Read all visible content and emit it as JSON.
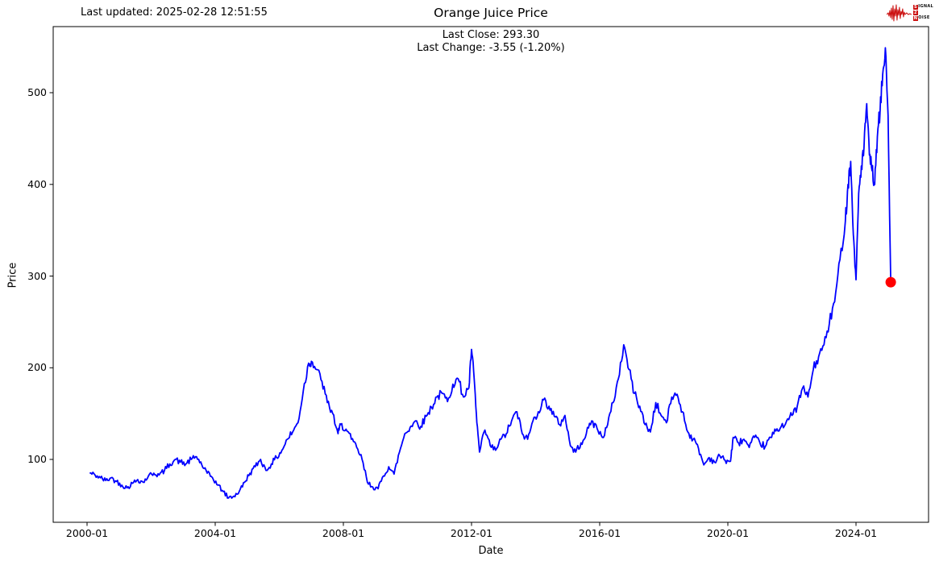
{
  "header": {
    "last_updated": "Last updated: 2025-02-28 12:51:55",
    "logo": {
      "color": "#cc1111",
      "line1_box": "S",
      "line1_rest": "IGNAL",
      "line2_box": "2",
      "line2_rest": "",
      "line3_box": "N",
      "line3_rest": "OISE"
    }
  },
  "chart_data": {
    "type": "line",
    "title": "Orange Juice Price",
    "annotations": [
      "Last Close: 293.30",
      "Last Change: -3.55 (-1.20%)"
    ],
    "xlabel": "Date",
    "ylabel": "Price",
    "x_ticks": [
      "2000-01",
      "2004-01",
      "2008-01",
      "2012-01",
      "2016-01",
      "2020-01",
      "2024-01"
    ],
    "y_ticks": [
      100,
      200,
      300,
      400,
      500
    ],
    "ylim": [
      32,
      573
    ],
    "grid": false,
    "legend": "none",
    "line_color": "#0000ff",
    "last_point_color": "#ff0000",
    "last_close": 293.3,
    "last_change": -3.55,
    "last_change_pct": "-1.20%",
    "series": [
      {
        "name": "Orange Juice Price",
        "points": [
          [
            "2000-02",
            85
          ],
          [
            "2000-04",
            83
          ],
          [
            "2000-06",
            80
          ],
          [
            "2000-08",
            77
          ],
          [
            "2000-10",
            80
          ],
          [
            "2000-12",
            76
          ],
          [
            "2001-02",
            72
          ],
          [
            "2001-04",
            69
          ],
          [
            "2001-06",
            74
          ],
          [
            "2001-08",
            78
          ],
          [
            "2001-10",
            75
          ],
          [
            "2001-12",
            82
          ],
          [
            "2002-02",
            85
          ],
          [
            "2002-04",
            83
          ],
          [
            "2002-06",
            88
          ],
          [
            "2002-08",
            95
          ],
          [
            "2002-10",
            100
          ],
          [
            "2002-12",
            97
          ],
          [
            "2003-02",
            95
          ],
          [
            "2003-04",
            100
          ],
          [
            "2003-06",
            103
          ],
          [
            "2003-08",
            94
          ],
          [
            "2003-10",
            85
          ],
          [
            "2003-12",
            80
          ],
          [
            "2004-02",
            72
          ],
          [
            "2004-04",
            65
          ],
          [
            "2004-06",
            58
          ],
          [
            "2004-08",
            60
          ],
          [
            "2004-10",
            65
          ],
          [
            "2004-12",
            75
          ],
          [
            "2005-02",
            85
          ],
          [
            "2005-04",
            92
          ],
          [
            "2005-06",
            100
          ],
          [
            "2005-08",
            88
          ],
          [
            "2005-10",
            95
          ],
          [
            "2005-12",
            102
          ],
          [
            "2006-02",
            110
          ],
          [
            "2006-04",
            122
          ],
          [
            "2006-06",
            130
          ],
          [
            "2006-08",
            140
          ],
          [
            "2006-10",
            175
          ],
          [
            "2006-12",
            205
          ],
          [
            "2007-01",
            207
          ],
          [
            "2007-03",
            198
          ],
          [
            "2007-05",
            185
          ],
          [
            "2007-07",
            162
          ],
          [
            "2007-09",
            150
          ],
          [
            "2007-11",
            128
          ],
          [
            "2007-12",
            138
          ],
          [
            "2008-02",
            133
          ],
          [
            "2008-04",
            122
          ],
          [
            "2008-06",
            113
          ],
          [
            "2008-08",
            100
          ],
          [
            "2008-10",
            75
          ],
          [
            "2008-12",
            70
          ],
          [
            "2009-02",
            68
          ],
          [
            "2009-04",
            82
          ],
          [
            "2009-06",
            92
          ],
          [
            "2009-08",
            84
          ],
          [
            "2009-10",
            108
          ],
          [
            "2009-12",
            128
          ],
          [
            "2010-02",
            135
          ],
          [
            "2010-04",
            142
          ],
          [
            "2010-06",
            136
          ],
          [
            "2010-08",
            147
          ],
          [
            "2010-10",
            157
          ],
          [
            "2010-12",
            168
          ],
          [
            "2011-02",
            172
          ],
          [
            "2011-04",
            163
          ],
          [
            "2011-06",
            182
          ],
          [
            "2011-08",
            188
          ],
          [
            "2011-10",
            168
          ],
          [
            "2011-12",
            178
          ],
          [
            "2012-01",
            220
          ],
          [
            "2012-02",
            188
          ],
          [
            "2012-03",
            140
          ],
          [
            "2012-04",
            108
          ],
          [
            "2012-06",
            132
          ],
          [
            "2012-08",
            115
          ],
          [
            "2012-10",
            110
          ],
          [
            "2012-12",
            122
          ],
          [
            "2013-02",
            128
          ],
          [
            "2013-04",
            142
          ],
          [
            "2013-06",
            152
          ],
          [
            "2013-08",
            128
          ],
          [
            "2013-10",
            122
          ],
          [
            "2013-12",
            142
          ],
          [
            "2014-02",
            152
          ],
          [
            "2014-04",
            165
          ],
          [
            "2014-06",
            158
          ],
          [
            "2014-08",
            147
          ],
          [
            "2014-10",
            138
          ],
          [
            "2014-12",
            148
          ],
          [
            "2015-02",
            115
          ],
          [
            "2015-04",
            108
          ],
          [
            "2015-06",
            118
          ],
          [
            "2015-08",
            128
          ],
          [
            "2015-10",
            142
          ],
          [
            "2015-12",
            134
          ],
          [
            "2016-02",
            124
          ],
          [
            "2016-04",
            138
          ],
          [
            "2016-06",
            162
          ],
          [
            "2016-08",
            188
          ],
          [
            "2016-10",
            225
          ],
          [
            "2016-12",
            198
          ],
          [
            "2017-02",
            172
          ],
          [
            "2017-04",
            158
          ],
          [
            "2017-06",
            138
          ],
          [
            "2017-08",
            130
          ],
          [
            "2017-10",
            162
          ],
          [
            "2017-12",
            148
          ],
          [
            "2018-02",
            140
          ],
          [
            "2018-04",
            168
          ],
          [
            "2018-06",
            171
          ],
          [
            "2018-08",
            152
          ],
          [
            "2018-10",
            130
          ],
          [
            "2018-12",
            122
          ],
          [
            "2019-02",
            112
          ],
          [
            "2019-04",
            94
          ],
          [
            "2019-06",
            102
          ],
          [
            "2019-08",
            97
          ],
          [
            "2019-10",
            104
          ],
          [
            "2019-12",
            99
          ],
          [
            "2020-02",
            98
          ],
          [
            "2020-03",
            124
          ],
          [
            "2020-05",
            118
          ],
          [
            "2020-07",
            122
          ],
          [
            "2020-09",
            113
          ],
          [
            "2020-11",
            124
          ],
          [
            "2021-01",
            118
          ],
          [
            "2021-03",
            114
          ],
          [
            "2021-05",
            124
          ],
          [
            "2021-07",
            131
          ],
          [
            "2021-09",
            136
          ],
          [
            "2021-11",
            142
          ],
          [
            "2022-01",
            148
          ],
          [
            "2022-03",
            158
          ],
          [
            "2022-05",
            178
          ],
          [
            "2022-07",
            168
          ],
          [
            "2022-09",
            198
          ],
          [
            "2022-11",
            212
          ],
          [
            "2023-01",
            225
          ],
          [
            "2023-03",
            248
          ],
          [
            "2023-05",
            272
          ],
          [
            "2023-07",
            318
          ],
          [
            "2023-09",
            360
          ],
          [
            "2023-10",
            400
          ],
          [
            "2023-11",
            425
          ],
          [
            "2023-12",
            345
          ],
          [
            "2024-01",
            296
          ],
          [
            "2024-02",
            390
          ],
          [
            "2024-03",
            420
          ],
          [
            "2024-04",
            440
          ],
          [
            "2024-05",
            488
          ],
          [
            "2024-06",
            432
          ],
          [
            "2024-07",
            415
          ],
          [
            "2024-08",
            400
          ],
          [
            "2024-09",
            452
          ],
          [
            "2024-10",
            478
          ],
          [
            "2024-11",
            520
          ],
          [
            "2024-12",
            549
          ],
          [
            "2025-01",
            475
          ],
          [
            "2025-02",
            293.3
          ]
        ]
      }
    ]
  }
}
